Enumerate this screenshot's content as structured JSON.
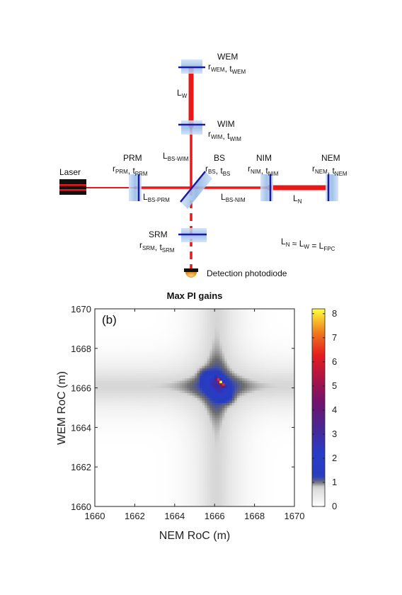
{
  "diagram": {
    "laser": "Laser",
    "wem": {
      "name": "WEM",
      "params": [
        [
          "r",
          "WEM"
        ],
        [
          "t",
          "WEM"
        ]
      ]
    },
    "wim": {
      "name": "WIM",
      "params": [
        [
          "r",
          "WIM"
        ],
        [
          "t",
          "WIM"
        ]
      ]
    },
    "prm": {
      "name": "PRM",
      "params": [
        [
          "r",
          "PRM"
        ],
        [
          "t",
          "PRM"
        ]
      ]
    },
    "bs": {
      "name": "BS",
      "params": [
        [
          "r",
          "BS"
        ],
        [
          "t",
          "BS"
        ]
      ]
    },
    "nim": {
      "name": "NIM",
      "params": [
        [
          "r",
          "NIM"
        ],
        [
          "t",
          "NIM"
        ]
      ]
    },
    "nem": {
      "name": "NEM",
      "params": [
        [
          "r",
          "NEM"
        ],
        [
          "t",
          "NEM"
        ]
      ]
    },
    "srm": {
      "name": "SRM",
      "params": [
        [
          "r",
          "SRM"
        ],
        [
          "t",
          "SRM"
        ]
      ]
    },
    "l_w": [
      "L",
      "W"
    ],
    "l_n": [
      "L",
      "N"
    ],
    "l_bs_wim": [
      "L",
      "BS-WIM"
    ],
    "l_bs_prm": [
      "L",
      "BS-PRM"
    ],
    "l_bs_nim": [
      "L",
      "BS-NIM"
    ],
    "equation": [
      [
        "L",
        "N"
      ],
      [
        " ≈ ",
        ""
      ],
      [
        "L",
        "W"
      ],
      [
        " = ",
        ""
      ],
      [
        "L",
        "FPC"
      ]
    ],
    "detector": "Detection photodiode"
  },
  "chart_data": {
    "type": "heatmap",
    "title": "Max PI gains",
    "panel_label": "(b)",
    "xlabel": "NEM RoC (m)",
    "ylabel": "WEM RoC (m)",
    "xlim": [
      1660,
      1670
    ],
    "ylim": [
      1660,
      1670
    ],
    "xticks": [
      1660,
      1662,
      1664,
      1666,
      1668,
      1670
    ],
    "yticks": [
      1660,
      1662,
      1664,
      1666,
      1668,
      1670
    ],
    "colorbar": {
      "range": [
        0,
        8.2
      ],
      "ticks": [
        0,
        1,
        2,
        3,
        4,
        5,
        6,
        7,
        8
      ]
    },
    "peak": {
      "x": 1666.3,
      "y": 1666.3,
      "value": 8.2
    },
    "ridge_center": {
      "x": 1666.1,
      "y": 1666.1
    },
    "unstable_region_value_min": 1,
    "colors": {
      "low": "#ffffff",
      "gray": "#6e6e6e",
      "blue": "#1f3fbf",
      "purple": "#5a1a80",
      "red": "#e82020",
      "yellow": "#ffff40",
      "beam": "#e8181a",
      "mirror_line": "#1a1aa8",
      "mirror_glass": "#a9c9ee"
    }
  }
}
